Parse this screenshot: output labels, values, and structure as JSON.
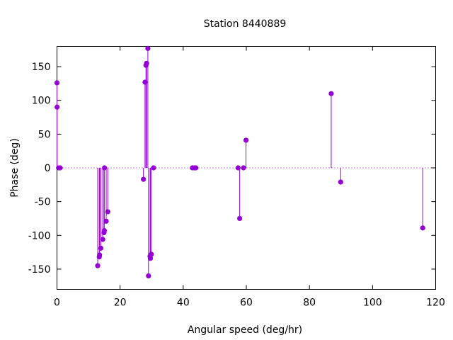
{
  "chart_data": {
    "type": "scatter",
    "style": "impulses-with-points",
    "title": "Station 8440889",
    "xlabel": "Angular speed (deg/hr)",
    "ylabel": "Phase (deg)",
    "xlim": [
      0,
      120
    ],
    "ylim": [
      -180,
      180
    ],
    "xticks": [
      0,
      20,
      40,
      60,
      80,
      100,
      120
    ],
    "yticks": [
      -150,
      -100,
      -50,
      0,
      50,
      100,
      150
    ],
    "grid": false,
    "color": "#9400d3",
    "points": [
      {
        "x": 0.0,
        "y": 126
      },
      {
        "x": 0.04,
        "y": 90
      },
      {
        "x": 0.5,
        "y": 0
      },
      {
        "x": 1.0,
        "y": 0
      },
      {
        "x": 12.9,
        "y": -145
      },
      {
        "x": 13.4,
        "y": -132
      },
      {
        "x": 13.5,
        "y": -129
      },
      {
        "x": 13.9,
        "y": -119
      },
      {
        "x": 14.5,
        "y": -106
      },
      {
        "x": 14.9,
        "y": -96
      },
      {
        "x": 15.0,
        "y": -93
      },
      {
        "x": 15.05,
        "y": 0
      },
      {
        "x": 15.6,
        "y": -79
      },
      {
        "x": 16.1,
        "y": -65
      },
      {
        "x": 27.4,
        "y": -17
      },
      {
        "x": 27.9,
        "y": 127
      },
      {
        "x": 28.2,
        "y": 152
      },
      {
        "x": 28.4,
        "y": 155
      },
      {
        "x": 28.8,
        "y": 177
      },
      {
        "x": 29.0,
        "y": -160
      },
      {
        "x": 29.5,
        "y": -131
      },
      {
        "x": 29.6,
        "y": -134
      },
      {
        "x": 29.9,
        "y": -128
      },
      {
        "x": 30.6,
        "y": 0
      },
      {
        "x": 42.9,
        "y": 0
      },
      {
        "x": 43.5,
        "y": 0
      },
      {
        "x": 44.0,
        "y": 0
      },
      {
        "x": 57.4,
        "y": 0
      },
      {
        "x": 57.9,
        "y": -75
      },
      {
        "x": 59.1,
        "y": 0
      },
      {
        "x": 59.9,
        "y": 41
      },
      {
        "x": 86.9,
        "y": 110
      },
      {
        "x": 89.9,
        "y": -21
      },
      {
        "x": 115.9,
        "y": -89
      }
    ]
  }
}
